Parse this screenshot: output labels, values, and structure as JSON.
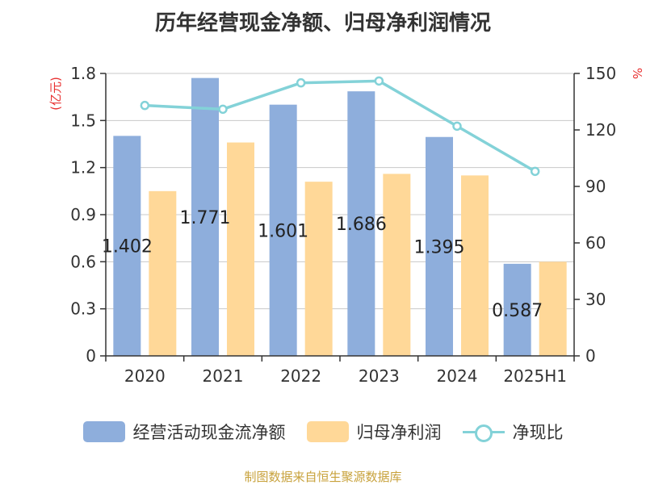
{
  "title": "历年经营现金净额、归母净利润情况",
  "source": "制图数据来自恒生聚源数据库",
  "colors": {
    "operating_cash": "#8eaedc",
    "net_profit": "#ffd898",
    "ratio": "#83d2d8",
    "axis_unit": "#e83030",
    "source": "#c8a23c"
  },
  "chart_data": {
    "type": "bar",
    "categories": [
      "2020",
      "2021",
      "2022",
      "2023",
      "2024",
      "2025H1"
    ],
    "y_left": {
      "unit": "亿元",
      "ylim": [
        0,
        1.8
      ],
      "ticks": [
        "0",
        "0.3",
        "0.6",
        "0.9",
        "1.2",
        "1.5",
        "1.8"
      ]
    },
    "y_right": {
      "unit": "%",
      "ylim": [
        0,
        150
      ],
      "ticks": [
        "0",
        "30",
        "60",
        "90",
        "120",
        "150"
      ]
    },
    "series": [
      {
        "name": "经营活动现金流净额",
        "type": "bar",
        "axis": "left",
        "values": [
          1.402,
          1.771,
          1.601,
          1.686,
          1.395,
          0.587
        ],
        "labels": [
          "1.402",
          "1.771",
          "1.601",
          "1.686",
          "1.395",
          "0.587"
        ]
      },
      {
        "name": "归母净利润",
        "type": "bar",
        "axis": "left",
        "values": [
          1.05,
          1.36,
          1.11,
          1.16,
          1.15,
          0.6
        ]
      },
      {
        "name": "净现比",
        "type": "line",
        "axis": "right",
        "values": [
          133,
          131,
          145,
          146,
          122,
          98
        ]
      }
    ],
    "grid": true,
    "legend_position": "bottom"
  }
}
